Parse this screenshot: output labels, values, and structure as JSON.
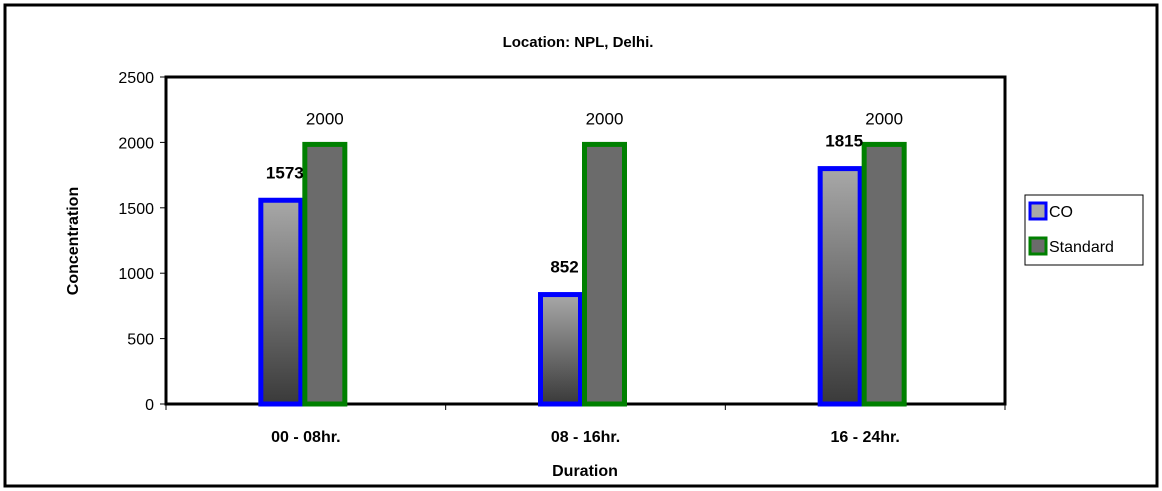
{
  "chart_data": {
    "type": "bar",
    "title": "Location: NPL, Delhi.",
    "xlabel": "Duration",
    "ylabel": "Concentration",
    "categories": [
      "00 - 08hr.",
      "08 - 16hr.",
      "16 - 24hr."
    ],
    "series": [
      {
        "name": "CO",
        "values": [
          1573,
          852,
          1815
        ]
      },
      {
        "name": "Standard",
        "values": [
          2000,
          2000,
          2000
        ]
      }
    ],
    "ylim": [
      0,
      2500
    ],
    "yticks": [
      0,
      500,
      1000,
      1500,
      2000,
      2500
    ],
    "grid": false,
    "legend_position": "right",
    "colors": {
      "co_border": "#0000ff",
      "standard_border": "#008000",
      "standard_fill": "#6b6b6b",
      "co_fill_top": "#a8a8a8",
      "co_fill_bottom": "#3a3a3a"
    }
  }
}
